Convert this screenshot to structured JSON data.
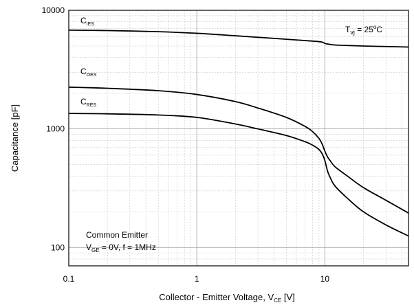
{
  "chart_data": {
    "type": "line",
    "xlabel": {
      "main": "Collector - Emitter Voltage, V",
      "sub": "CE",
      "unit": " [V]"
    },
    "ylabel": "Capacitance [pF]",
    "x_scale": "log",
    "y_scale": "log",
    "xlim": [
      0.1,
      45
    ],
    "ylim": [
      70,
      10000
    ],
    "x_ticks": [
      {
        "v": 0.1,
        "label": "0.1"
      },
      {
        "v": 1,
        "label": "1"
      },
      {
        "v": 10,
        "label": "10"
      }
    ],
    "y_ticks": [
      {
        "v": 100,
        "label": "100"
      },
      {
        "v": 1000,
        "label": "1000"
      },
      {
        "v": 10000,
        "label": "10000"
      }
    ],
    "grid": true,
    "condition": {
      "main": "T",
      "sub": "vj",
      "rest": " = 25",
      "sup": "o",
      "unit": "C"
    },
    "legend_box": {
      "line1": "Common Emitter",
      "line2_a": "V",
      "line2_sub": "GE",
      "line2_b": " = 0V, f  = 1MHz"
    },
    "series": [
      {
        "name": "C",
        "name_sub": "IES",
        "x": [
          0.1,
          0.2,
          0.5,
          1,
          2,
          5,
          8,
          9.5,
          10,
          10.5,
          12,
          15,
          20,
          30,
          45
        ],
        "y": [
          6800,
          6750,
          6600,
          6400,
          6100,
          5700,
          5500,
          5400,
          5250,
          5200,
          5100,
          5050,
          5000,
          4950,
          4900
        ]
      },
      {
        "name": "C",
        "name_sub": "OES",
        "x": [
          0.1,
          0.2,
          0.5,
          1,
          2,
          3,
          5,
          7,
          8,
          9,
          9.5,
          10,
          10.5,
          11,
          12,
          15,
          20,
          30,
          45
        ],
        "y": [
          2250,
          2200,
          2100,
          1950,
          1700,
          1500,
          1250,
          1050,
          950,
          830,
          750,
          650,
          580,
          540,
          480,
          400,
          320,
          250,
          195
        ]
      },
      {
        "name": "C",
        "name_sub": "RES",
        "x": [
          0.1,
          0.2,
          0.5,
          1,
          2,
          3,
          5,
          7,
          8,
          9,
          9.5,
          10,
          10.5,
          11,
          12,
          15,
          20,
          30,
          45
        ],
        "y": [
          1350,
          1340,
          1310,
          1250,
          1100,
          1000,
          880,
          780,
          730,
          670,
          620,
          540,
          440,
          390,
          330,
          260,
          200,
          155,
          125
        ]
      }
    ]
  }
}
